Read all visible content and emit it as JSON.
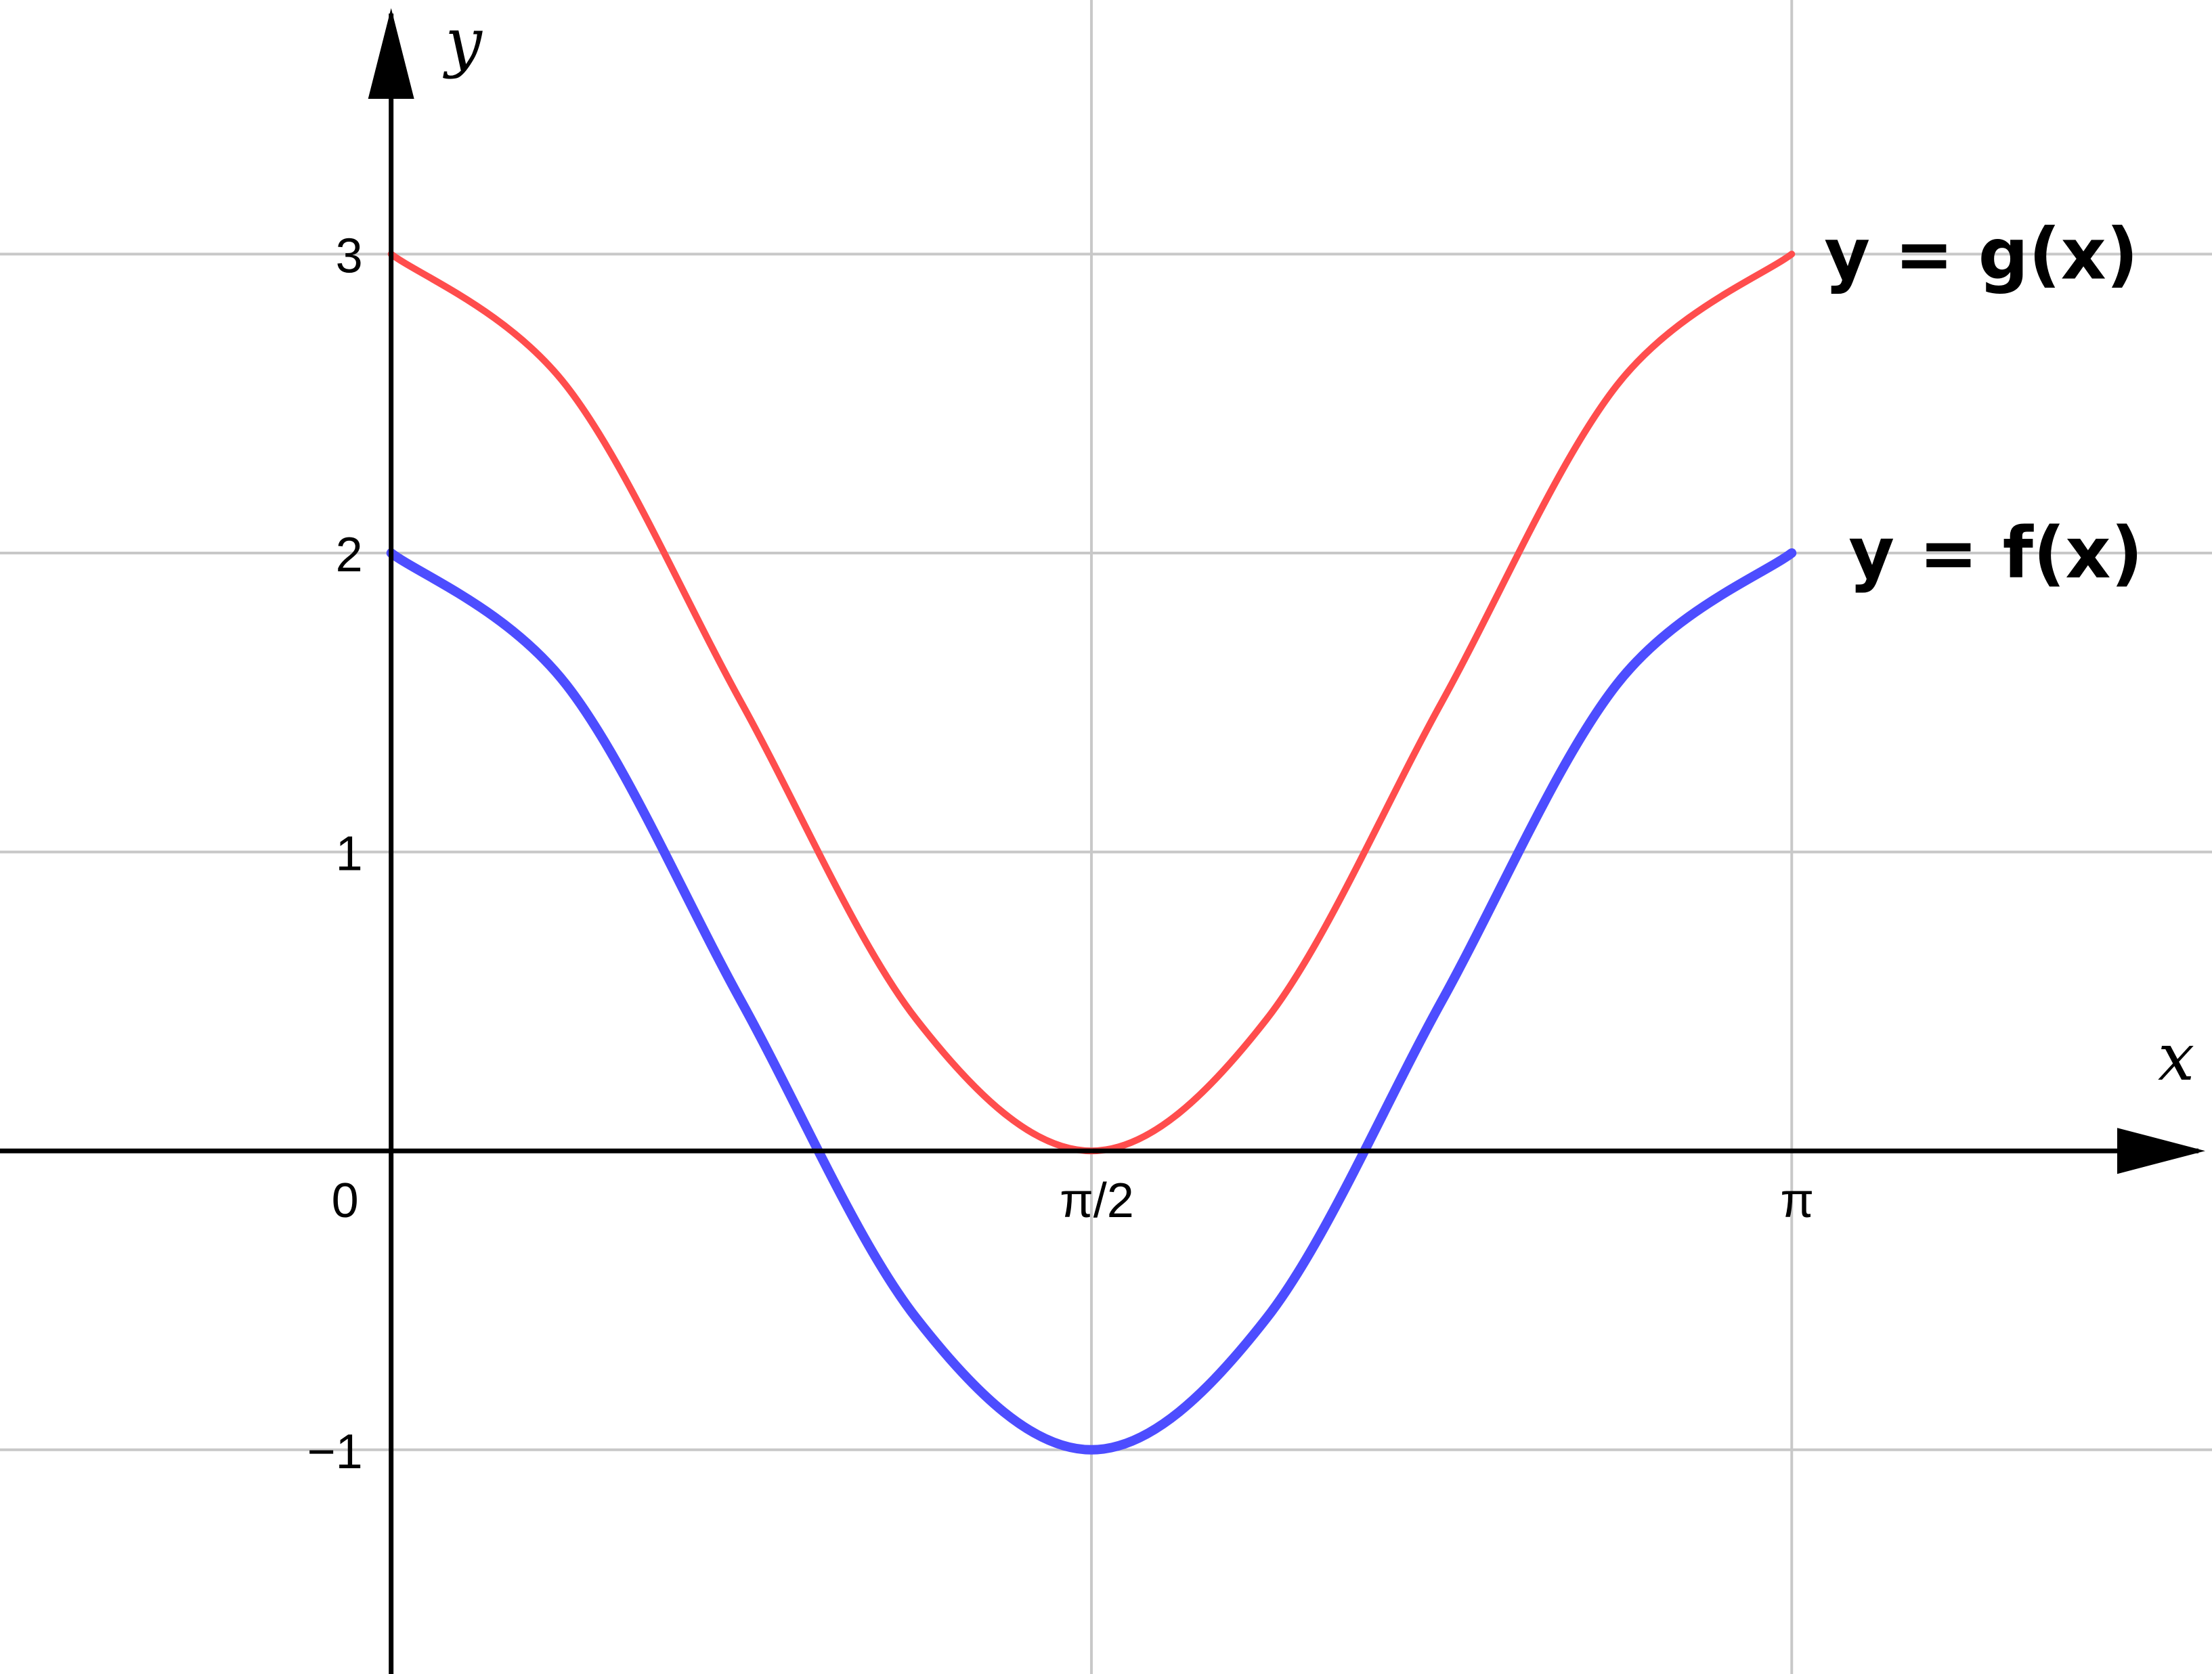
{
  "chart_data": {
    "type": "line",
    "xlabel": "x",
    "ylabel": "y",
    "xlim": [
      -0.8773,
      4.0843
    ],
    "ylim": [
      -1.75,
      3.85
    ],
    "x_ticks": [
      {
        "value": 0,
        "label": "0"
      },
      {
        "value": 1.5708,
        "label": "π/2"
      },
      {
        "value": 3.1416,
        "label": "π"
      }
    ],
    "y_ticks": [
      {
        "value": -1,
        "label": "−1"
      },
      {
        "value": 1,
        "label": "1"
      },
      {
        "value": 2,
        "label": "2"
      },
      {
        "value": 3,
        "label": "3"
      }
    ],
    "grid": true,
    "series": [
      {
        "name": "y = g(x)",
        "color": "#ff4d4d",
        "x": [
          0,
          0.3927,
          0.7854,
          1.1781,
          1.5708,
          1.9635,
          2.3562,
          2.7489,
          3.1416
        ],
        "y": [
          3,
          2.56,
          1.5,
          0.44,
          0,
          0.44,
          1.5,
          2.56,
          3
        ]
      },
      {
        "name": "y = f(x)",
        "color": "#4d4dff",
        "x": [
          0,
          0.3927,
          0.7854,
          1.1781,
          1.5708,
          1.9635,
          2.3562,
          2.7489,
          3.1416
        ],
        "y": [
          2,
          1.56,
          0.5,
          -0.56,
          -1,
          -0.56,
          0.5,
          1.56,
          2
        ]
      }
    ]
  }
}
